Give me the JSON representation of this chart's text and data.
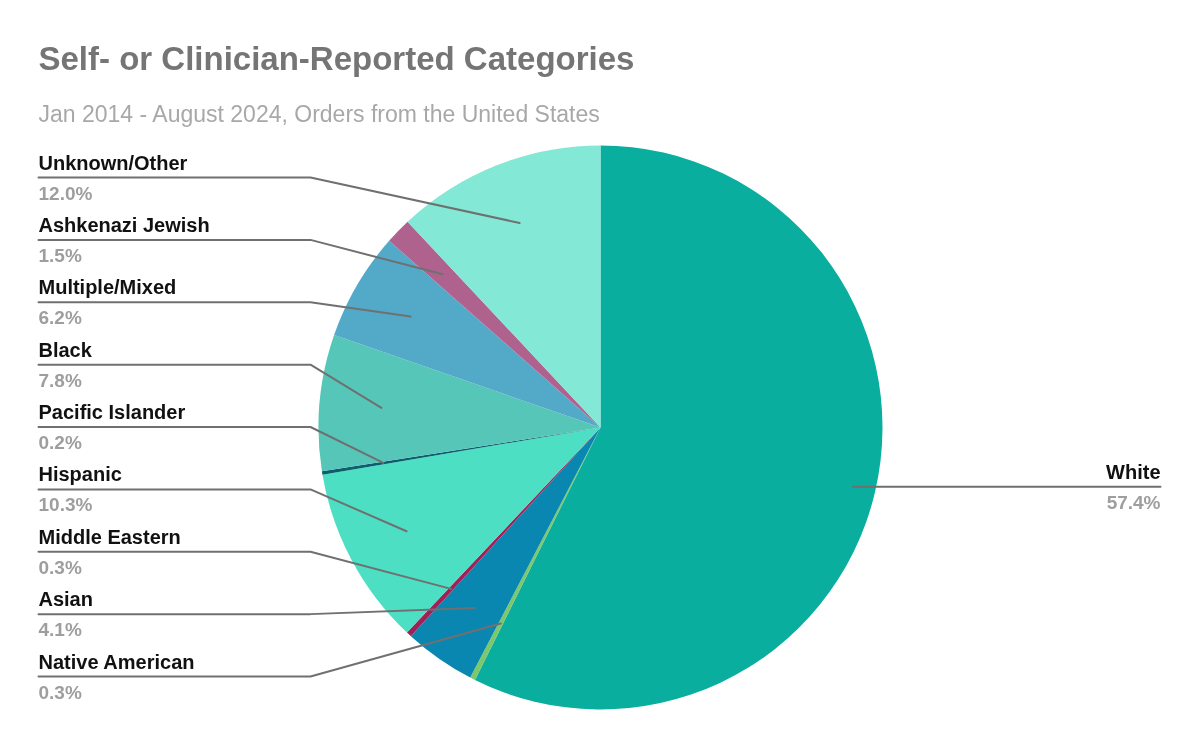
{
  "chart_data": {
    "type": "pie",
    "title": "Self- or Clinician-Reported Categories",
    "subtitle": "Jan 2014 - August 2024, Orders from the United States",
    "categories": [
      "White",
      "Native American",
      "Asian",
      "Middle Eastern",
      "Hispanic",
      "Pacific Islander",
      "Black",
      "Multiple/Mixed",
      "Ashkenazi Jewish",
      "Unknown/Other"
    ],
    "values": [
      57.4,
      0.3,
      4.1,
      0.3,
      10.3,
      0.2,
      7.8,
      6.2,
      1.5,
      12.0
    ],
    "value_labels": [
      "57.4%",
      "0.3%",
      "4.1%",
      "0.3%",
      "10.3%",
      "0.2%",
      "7.8%",
      "6.2%",
      "1.5%",
      "12.0%"
    ],
    "colors": [
      "#0aae9f",
      "#7cc86a",
      "#0a87b0",
      "#a0205a",
      "#4ddfc3",
      "#0b5f6e",
      "#55c6b8",
      "#52aac8",
      "#b0628e",
      "#83e8d6"
    ]
  }
}
